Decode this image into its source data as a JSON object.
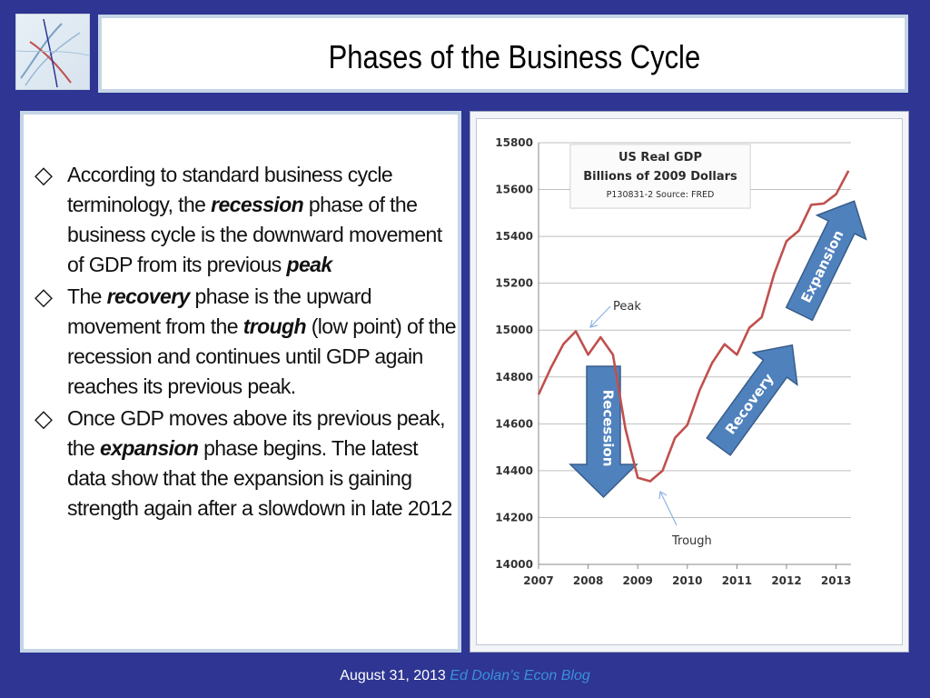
{
  "title": "Phases of the Business Cycle",
  "bullets": [
    [
      {
        "t": "According to standard business cycle terminology, the "
      },
      {
        "t": "recession",
        "b": true
      },
      {
        "t": " phase of the business cycle is the downward movement of GDP from its previous "
      },
      {
        "t": "peak",
        "b": true
      }
    ],
    [
      {
        "t": "The "
      },
      {
        "t": "recovery",
        "b": true
      },
      {
        "t": " phase is the upward movement from the "
      },
      {
        "t": "trough",
        "b": true
      },
      {
        "t": " (low point) of the recession and continues until GDP again reaches its previous peak."
      }
    ],
    [
      {
        "t": "Once GDP moves above its previous peak, the "
      },
      {
        "t": "expansion",
        "b": true
      },
      {
        "t": " phase begins. The latest data show that the expansion is gaining strength again after a slowdown in late 2012"
      }
    ]
  ],
  "chart_data": {
    "type": "line",
    "title": "US Real GDP",
    "subtitle": "Billions of 2009 Dollars",
    "source": "P130831-2 Source: FRED",
    "ylim": [
      14000,
      15800
    ],
    "yticks": [
      14000,
      14200,
      14400,
      14600,
      14800,
      15000,
      15200,
      15400,
      15600,
      15800
    ],
    "xlim": [
      2007,
      2013.3
    ],
    "xticks": [
      "2007",
      "2008",
      "2009",
      "2010",
      "2011",
      "2012",
      "2013"
    ],
    "grid": true,
    "series": [
      {
        "color": "#c0504d",
        "points": [
          [
            2007.0,
            14725
          ],
          [
            2007.25,
            14840
          ],
          [
            2007.5,
            14940
          ],
          [
            2007.75,
            14995
          ],
          [
            2008.0,
            14895
          ],
          [
            2008.25,
            14970
          ],
          [
            2008.5,
            14895
          ],
          [
            2008.75,
            14580
          ],
          [
            2009.0,
            14370
          ],
          [
            2009.25,
            14355
          ],
          [
            2009.5,
            14400
          ],
          [
            2009.75,
            14540
          ],
          [
            2010.0,
            14595
          ],
          [
            2010.25,
            14745
          ],
          [
            2010.5,
            14860
          ],
          [
            2010.75,
            14940
          ],
          [
            2011.0,
            14895
          ],
          [
            2011.25,
            15010
          ],
          [
            2011.5,
            15055
          ],
          [
            2011.75,
            15240
          ],
          [
            2012.0,
            15380
          ],
          [
            2012.25,
            15425
          ],
          [
            2012.5,
            15535
          ],
          [
            2012.75,
            15540
          ],
          [
            2013.0,
            15580
          ],
          [
            2013.25,
            15680
          ]
        ]
      }
    ],
    "annotations": [
      {
        "text": "Peak",
        "x": 2007.75,
        "y": 14995
      },
      {
        "text": "Trough",
        "x": 2009.25,
        "y": 14355
      }
    ],
    "arrows": [
      {
        "label": "Recession",
        "direction": "down",
        "color": "#4f81bd"
      },
      {
        "label": "Recovery",
        "direction": "up-right",
        "color": "#4f81bd"
      },
      {
        "label": "Expansion",
        "direction": "up-right",
        "color": "#4f81bd"
      }
    ]
  },
  "footer": {
    "date": "August 31, 2013",
    "blog": "Ed Dolan’s Econ Blog"
  }
}
